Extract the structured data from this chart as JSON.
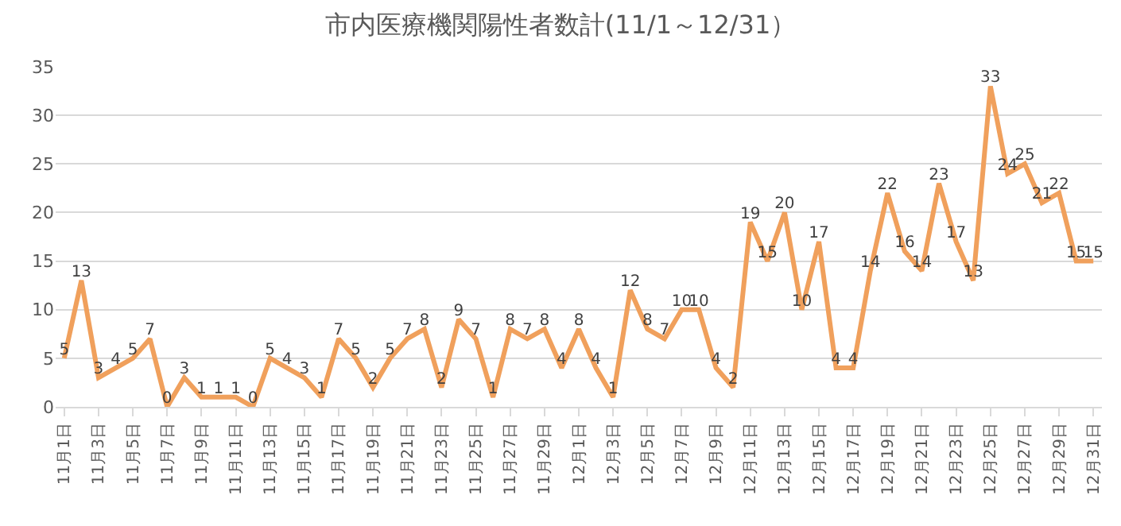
{
  "chart_data": {
    "type": "line",
    "title": "市内医療機関陽性者数計(11/1～12/31）",
    "categories": [
      "11月1日",
      null,
      "11月3日",
      null,
      "11月5日",
      null,
      "11月7日",
      null,
      "11月9日",
      null,
      "11月11日",
      null,
      "11月13日",
      null,
      "11月15日",
      null,
      "11月17日",
      null,
      "11月19日",
      null,
      "11月21日",
      null,
      "11月23日",
      null,
      "11月25日",
      null,
      "11月27日",
      null,
      "11月29日",
      null,
      "12月1日",
      null,
      "12月3日",
      null,
      "12月5日",
      null,
      "12月7日",
      null,
      "12月9日",
      null,
      "12月11日",
      null,
      "12月13日",
      null,
      "12月15日",
      null,
      "12月17日",
      null,
      "12月19日",
      null,
      "12月21日",
      null,
      "12月23日",
      null,
      "12月25日",
      null,
      "12月27日",
      null,
      "12月29日",
      null,
      "12月31日"
    ],
    "series": [
      {
        "color": "#f0a05c",
        "values": [
          5,
          13,
          3,
          4,
          5,
          7,
          0,
          3,
          1,
          1,
          1,
          0,
          5,
          4,
          3,
          1,
          7,
          5,
          2,
          5,
          7,
          8,
          2,
          9,
          7,
          1,
          8,
          7,
          8,
          4,
          8,
          4,
          1,
          12,
          8,
          7,
          10,
          10,
          4,
          2,
          19,
          15,
          20,
          10,
          17,
          4,
          4,
          14,
          22,
          16,
          14,
          23,
          17,
          13,
          33,
          24,
          25,
          21,
          22,
          15,
          15
        ]
      }
    ],
    "ylim": [
      0,
      35
    ],
    "yticks": [
      0,
      5,
      10,
      15,
      20,
      25,
      30,
      35
    ],
    "grid": "y",
    "data_labels": true,
    "marker": "none",
    "line_style": "solid",
    "legend": false
  }
}
